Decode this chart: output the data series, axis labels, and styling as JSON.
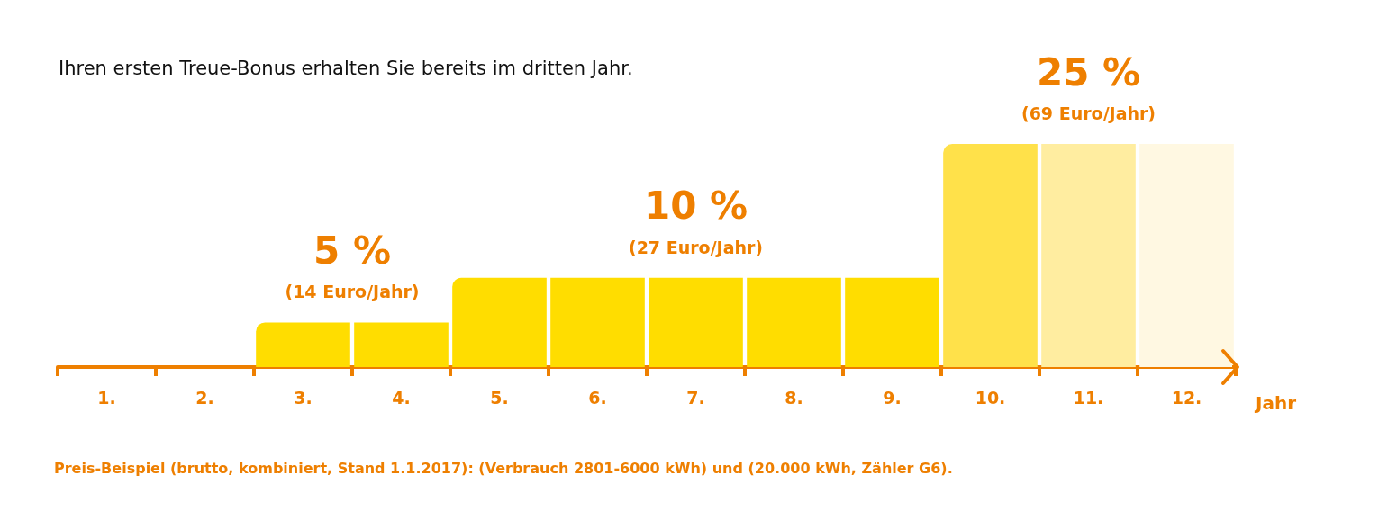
{
  "chart_data": {
    "type": "bar",
    "title": "Ihren ersten Treue-Bonus erhalten Sie bereits im dritten Jahr.",
    "xlabel": "Jahr",
    "categories": [
      "1.",
      "2.",
      "3.",
      "4.",
      "5.",
      "6.",
      "7.",
      "8.",
      "9.",
      "10.",
      "11.",
      "12."
    ],
    "values": [
      0,
      0,
      5,
      5,
      10,
      10,
      10,
      10,
      10,
      25,
      25,
      25
    ],
    "colors": [
      "#ffdd00",
      "#ffdd00",
      "#ffdd00",
      "#ffdd00",
      "#ffdd00",
      "#ffdd00",
      "#ffdd00",
      "#ffdd00",
      "#ffdd00",
      "#ffe14a",
      "#ffeda0",
      "#fff8e2"
    ],
    "value_labels": [
      null,
      null,
      "5 %",
      null,
      null,
      null,
      "10 %",
      null,
      null,
      null,
      "25 %",
      null
    ],
    "annotations": [
      {
        "text": "(14 Euro/Jahr)",
        "x": "3.",
        "y": 5
      },
      {
        "text": "(27 Euro/Jahr)",
        "x": "7.",
        "y": 10
      },
      {
        "text": "(69 Euro/Jahr)",
        "x": "11.",
        "y": 25
      },
      "Preis-Beispiel (brutto, kombiniert, Stand 1.1.2017): (Verbrauch 2801-6000 kWh) und (20.000 kWh, Zähler G6)."
    ],
    "tick_labels": "x",
    "grid": false
  }
}
